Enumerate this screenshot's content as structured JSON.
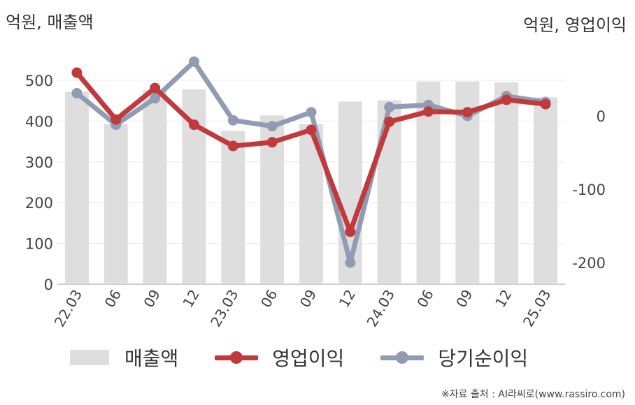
{
  "left_axis_title": "억원, 매출액",
  "right_axis_title": "억원, 영업이익",
  "source": "※자료 출처 : AI라씨로(www.rassiro.com)",
  "chart_data": {
    "type": "bar+line",
    "categories": [
      "22.03",
      "06",
      "09",
      "12",
      "23.03",
      "06",
      "09",
      "12",
      "24.03",
      "06",
      "09",
      "12",
      "25.03"
    ],
    "left_axis": {
      "ylim": [
        0,
        550
      ],
      "ticks": [
        0,
        100,
        200,
        300,
        400,
        500
      ]
    },
    "right_axis": {
      "ylim": [
        -230,
        75
      ],
      "ticks": [
        -200,
        -100,
        0
      ]
    },
    "series": [
      {
        "name": "매출액",
        "type": "bar",
        "axis": "left",
        "color": "#dedede",
        "values": [
          472,
          393,
          476,
          478,
          376,
          414,
          392,
          448,
          451,
          497,
          497,
          495,
          458
        ]
      },
      {
        "name": "영업이익",
        "type": "line",
        "axis": "right",
        "color": "#c0393b",
        "values": [
          59,
          -5,
          38,
          -12,
          -41,
          -36,
          -19,
          -158,
          -8,
          6,
          5,
          22,
          16
        ]
      },
      {
        "name": "당기순이익",
        "type": "line",
        "axis": "right",
        "color": "#919cb4",
        "values": [
          31,
          -12,
          24,
          74,
          -6,
          -14,
          5,
          -200,
          12,
          15,
          0,
          27,
          19
        ]
      }
    ],
    "grid": true,
    "legend": "bottom"
  }
}
